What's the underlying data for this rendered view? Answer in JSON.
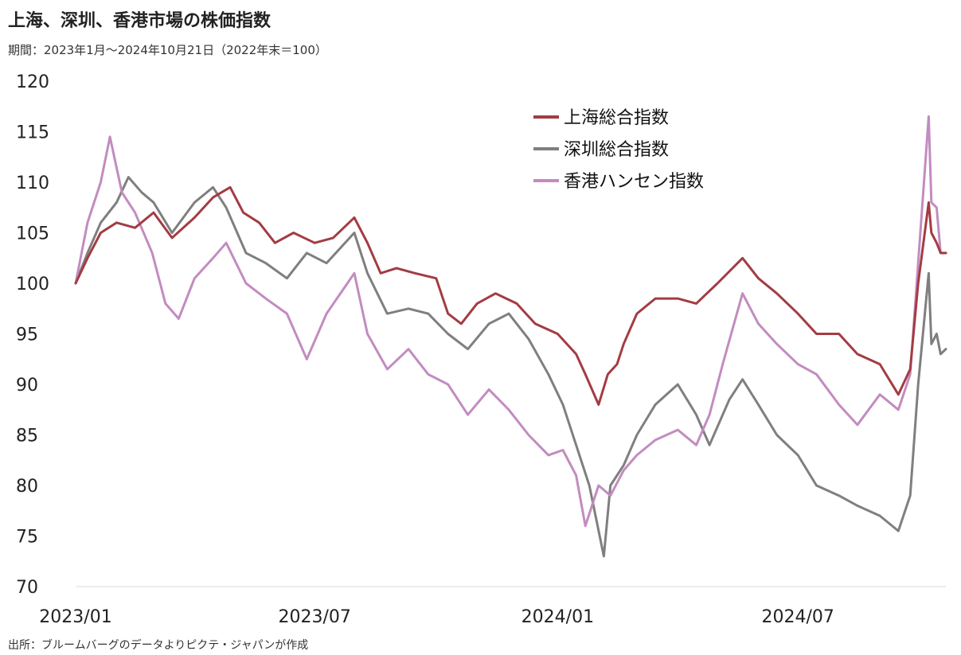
{
  "title": "上海、深圳、香港市場の株価指数",
  "subtitle": "期間：2023年1月～2024年10月21日（2022年末＝100）",
  "source": "出所：ブルームバーグのデータよりピクテ・ジャパンが作成",
  "chart_data": {
    "type": "line",
    "x_ticks": [
      "2023/01",
      "2023/07",
      "2024/01",
      "2024/07"
    ],
    "y_ticks": [
      70,
      75,
      80,
      85,
      90,
      95,
      100,
      105,
      110,
      115,
      120
    ],
    "ylim": [
      70,
      120
    ],
    "xlim": [
      "2023-01-01",
      "2024-10-21"
    ],
    "grid": false,
    "legend_position": "top-right",
    "series": [
      {
        "name": "上海総合指数",
        "color": "#a33c43",
        "points": [
          [
            "2023-01-01",
            100
          ],
          [
            "2023-01-10",
            102.5
          ],
          [
            "2023-01-20",
            105
          ],
          [
            "2023-02-01",
            106
          ],
          [
            "2023-02-15",
            105.5
          ],
          [
            "2023-03-01",
            107
          ],
          [
            "2023-03-15",
            104.5
          ],
          [
            "2023-04-01",
            106.5
          ],
          [
            "2023-04-15",
            108.5
          ],
          [
            "2023-04-28",
            109.5
          ],
          [
            "2023-05-08",
            107
          ],
          [
            "2023-05-20",
            106
          ],
          [
            "2023-06-01",
            104
          ],
          [
            "2023-06-15",
            105
          ],
          [
            "2023-07-01",
            104
          ],
          [
            "2023-07-15",
            104.5
          ],
          [
            "2023-07-31",
            106.5
          ],
          [
            "2023-08-10",
            104
          ],
          [
            "2023-08-20",
            101
          ],
          [
            "2023-09-01",
            101.5
          ],
          [
            "2023-09-15",
            101
          ],
          [
            "2023-10-01",
            100.5
          ],
          [
            "2023-10-10",
            97
          ],
          [
            "2023-10-20",
            96
          ],
          [
            "2023-11-01",
            98
          ],
          [
            "2023-11-15",
            99
          ],
          [
            "2023-12-01",
            98
          ],
          [
            "2023-12-15",
            96
          ],
          [
            "2024-01-01",
            95
          ],
          [
            "2024-01-15",
            93
          ],
          [
            "2024-01-22",
            91
          ],
          [
            "2024-02-01",
            88
          ],
          [
            "2024-02-08",
            91
          ],
          [
            "2024-02-15",
            92
          ],
          [
            "2024-02-20",
            94
          ],
          [
            "2024-03-01",
            97
          ],
          [
            "2024-03-15",
            98.5
          ],
          [
            "2024-04-01",
            98.5
          ],
          [
            "2024-04-15",
            98
          ],
          [
            "2024-05-01",
            100
          ],
          [
            "2024-05-20",
            102.5
          ],
          [
            "2024-06-01",
            100.5
          ],
          [
            "2024-06-15",
            99
          ],
          [
            "2024-07-01",
            97
          ],
          [
            "2024-07-15",
            95
          ],
          [
            "2024-08-01",
            95
          ],
          [
            "2024-08-15",
            93
          ],
          [
            "2024-09-01",
            92
          ],
          [
            "2024-09-15",
            89
          ],
          [
            "2024-09-24",
            91.5
          ],
          [
            "2024-09-30",
            100
          ],
          [
            "2024-10-08",
            108
          ],
          [
            "2024-10-10",
            105
          ],
          [
            "2024-10-14",
            104
          ],
          [
            "2024-10-17",
            103
          ],
          [
            "2024-10-21",
            103
          ]
        ]
      },
      {
        "name": "深圳総合指数",
        "color": "#7f7f7f",
        "points": [
          [
            "2023-01-01",
            100
          ],
          [
            "2023-01-10",
            103
          ],
          [
            "2023-01-20",
            106
          ],
          [
            "2023-02-01",
            108
          ],
          [
            "2023-02-10",
            110.5
          ],
          [
            "2023-02-20",
            109
          ],
          [
            "2023-03-01",
            108
          ],
          [
            "2023-03-15",
            105
          ],
          [
            "2023-04-01",
            108
          ],
          [
            "2023-04-15",
            109.5
          ],
          [
            "2023-04-25",
            107.5
          ],
          [
            "2023-05-10",
            103
          ],
          [
            "2023-05-25",
            102
          ],
          [
            "2023-06-10",
            100.5
          ],
          [
            "2023-06-25",
            103
          ],
          [
            "2023-07-10",
            102
          ],
          [
            "2023-07-31",
            105
          ],
          [
            "2023-08-10",
            101
          ],
          [
            "2023-08-25",
            97
          ],
          [
            "2023-09-10",
            97.5
          ],
          [
            "2023-09-25",
            97
          ],
          [
            "2023-10-10",
            95
          ],
          [
            "2023-10-25",
            93.5
          ],
          [
            "2023-11-10",
            96
          ],
          [
            "2023-11-25",
            97
          ],
          [
            "2023-12-10",
            94.5
          ],
          [
            "2023-12-25",
            91
          ],
          [
            "2024-01-05",
            88
          ],
          [
            "2024-01-15",
            84
          ],
          [
            "2024-01-25",
            80
          ],
          [
            "2024-02-05",
            73
          ],
          [
            "2024-02-10",
            80
          ],
          [
            "2024-02-20",
            82
          ],
          [
            "2024-03-01",
            85
          ],
          [
            "2024-03-15",
            88
          ],
          [
            "2024-04-01",
            90
          ],
          [
            "2024-04-15",
            87
          ],
          [
            "2024-04-25",
            84
          ],
          [
            "2024-05-10",
            88.5
          ],
          [
            "2024-05-20",
            90.5
          ],
          [
            "2024-06-01",
            88
          ],
          [
            "2024-06-15",
            85
          ],
          [
            "2024-07-01",
            83
          ],
          [
            "2024-07-15",
            80
          ],
          [
            "2024-08-01",
            79
          ],
          [
            "2024-08-15",
            78
          ],
          [
            "2024-09-01",
            77
          ],
          [
            "2024-09-15",
            75.5
          ],
          [
            "2024-09-24",
            79
          ],
          [
            "2024-09-30",
            90
          ],
          [
            "2024-10-08",
            101
          ],
          [
            "2024-10-10",
            94
          ],
          [
            "2024-10-14",
            95
          ],
          [
            "2024-10-17",
            93
          ],
          [
            "2024-10-21",
            93.5
          ]
        ]
      },
      {
        "name": "香港ハンセン指数",
        "color": "#c28cc0",
        "points": [
          [
            "2023-01-01",
            100
          ],
          [
            "2023-01-10",
            106
          ],
          [
            "2023-01-20",
            110
          ],
          [
            "2023-01-27",
            114.5
          ],
          [
            "2023-02-05",
            109
          ],
          [
            "2023-02-15",
            107
          ],
          [
            "2023-02-28",
            103
          ],
          [
            "2023-03-10",
            98
          ],
          [
            "2023-03-20",
            96.5
          ],
          [
            "2023-04-01",
            100.5
          ],
          [
            "2023-04-15",
            102.5
          ],
          [
            "2023-04-25",
            104
          ],
          [
            "2023-05-10",
            100
          ],
          [
            "2023-05-25",
            98.5
          ],
          [
            "2023-06-10",
            97
          ],
          [
            "2023-06-25",
            92.5
          ],
          [
            "2023-07-10",
            97
          ],
          [
            "2023-07-31",
            101
          ],
          [
            "2023-08-10",
            95
          ],
          [
            "2023-08-25",
            91.5
          ],
          [
            "2023-09-10",
            93.5
          ],
          [
            "2023-09-25",
            91
          ],
          [
            "2023-10-10",
            90
          ],
          [
            "2023-10-25",
            87
          ],
          [
            "2023-11-10",
            89.5
          ],
          [
            "2023-11-25",
            87.5
          ],
          [
            "2023-12-10",
            85
          ],
          [
            "2023-12-25",
            83
          ],
          [
            "2024-01-05",
            83.5
          ],
          [
            "2024-01-15",
            81
          ],
          [
            "2024-01-22",
            76
          ],
          [
            "2024-02-01",
            80
          ],
          [
            "2024-02-10",
            79
          ],
          [
            "2024-02-20",
            81.5
          ],
          [
            "2024-03-01",
            83
          ],
          [
            "2024-03-15",
            84.5
          ],
          [
            "2024-04-01",
            85.5
          ],
          [
            "2024-04-15",
            84
          ],
          [
            "2024-04-25",
            87
          ],
          [
            "2024-05-05",
            92
          ],
          [
            "2024-05-20",
            99
          ],
          [
            "2024-06-01",
            96
          ],
          [
            "2024-06-15",
            94
          ],
          [
            "2024-07-01",
            92
          ],
          [
            "2024-07-15",
            91
          ],
          [
            "2024-08-01",
            88
          ],
          [
            "2024-08-15",
            86
          ],
          [
            "2024-09-01",
            89
          ],
          [
            "2024-09-15",
            87.5
          ],
          [
            "2024-09-24",
            91
          ],
          [
            "2024-09-30",
            102
          ],
          [
            "2024-10-08",
            116.5
          ],
          [
            "2024-10-10",
            108
          ],
          [
            "2024-10-14",
            107.5
          ],
          [
            "2024-10-17",
            103
          ],
          [
            "2024-10-21",
            103
          ]
        ]
      }
    ]
  }
}
